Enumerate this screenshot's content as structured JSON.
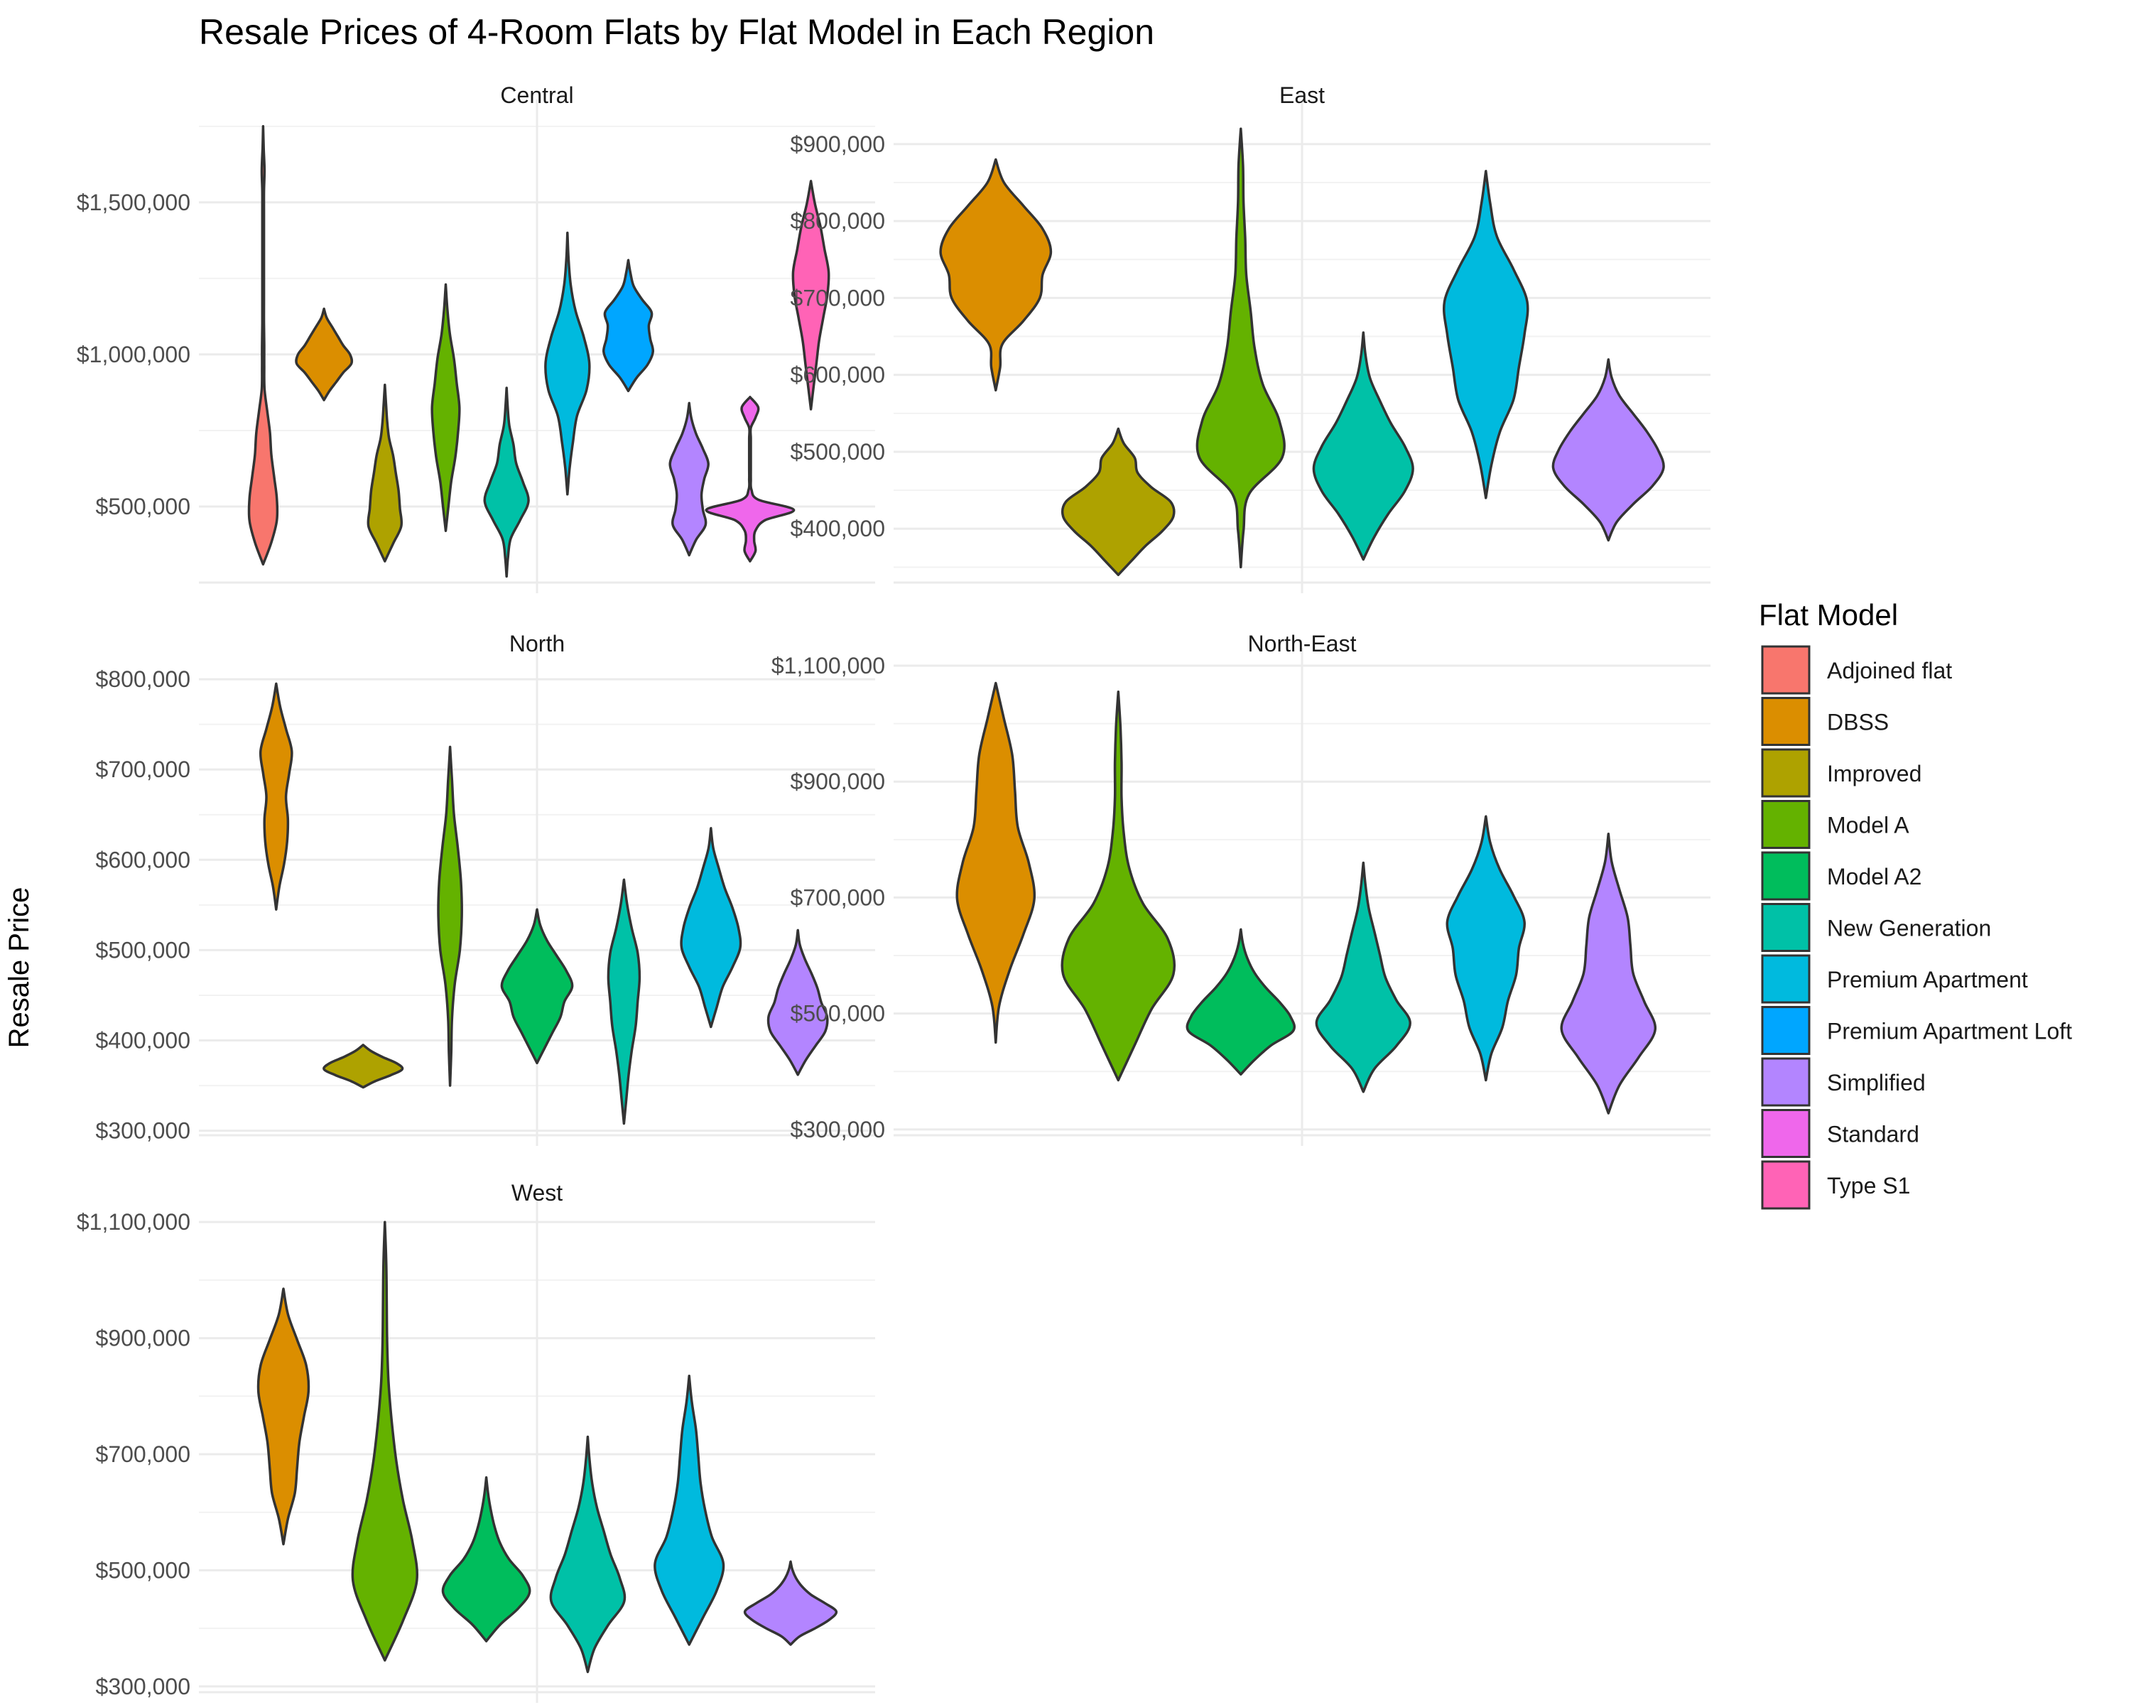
{
  "chart_data": {
    "type": "violin",
    "title": "Resale Prices of 4-Room Flats by Flat Model in Each Region",
    "ylabel": "Resale Price",
    "xlabel": "",
    "grid": true,
    "legend": {
      "title": "Flat Model",
      "placement": "right",
      "entries": [
        {
          "name": "Adjoined flat",
          "color": "#F8766D"
        },
        {
          "name": "DBSS",
          "color": "#DB8E00"
        },
        {
          "name": "Improved",
          "color": "#AEA200"
        },
        {
          "name": "Model A",
          "color": "#64B200"
        },
        {
          "name": "Model A2",
          "color": "#00BD5C"
        },
        {
          "name": "New Generation",
          "color": "#00C1A7"
        },
        {
          "name": "Premium Apartment",
          "color": "#00BADE"
        },
        {
          "name": "Premium Apartment Loft",
          "color": "#00A6FF"
        },
        {
          "name": "Simplified",
          "color": "#B385FF"
        },
        {
          "name": "Standard",
          "color": "#EF67EB"
        },
        {
          "name": "Type S1",
          "color": "#FF63B6"
        }
      ]
    },
    "panels": [
      {
        "region": "Central",
        "ylim": [
          250000,
          1780000
        ],
        "yticks": [
          500000,
          1000000,
          1500000
        ],
        "ytick_labels": [
          "$500,000",
          "$1,000,000",
          "$1,500,000"
        ],
        "violins": [
          {
            "model": "Adjoined flat",
            "min": 310000,
            "max": 1750000,
            "widths": [
              0,
              0.3,
              0.5,
              0.5,
              0.4,
              0.3,
              0.25,
              0.15,
              0.05,
              0.04,
              0.04,
              0.03,
              0.03,
              0.03,
              0.03,
              0.03,
              0.03,
              0.03,
              0.05,
              0.02,
              0
            ]
          },
          {
            "model": "DBSS",
            "min": 850000,
            "max": 1150000,
            "widths": [
              0,
              0.2,
              0.45,
              0.7,
              1.0,
              0.95,
              0.7,
              0.5,
              0.3,
              0.1,
              0
            ]
          },
          {
            "model": "Improved",
            "min": 320000,
            "max": 900000,
            "widths": [
              0,
              0.3,
              0.6,
              0.55,
              0.5,
              0.4,
              0.3,
              0.15,
              0.08,
              0.04,
              0
            ]
          },
          {
            "model": "Model A",
            "min": 420000,
            "max": 1230000,
            "widths": [
              0,
              0.1,
              0.2,
              0.35,
              0.45,
              0.5,
              0.4,
              0.3,
              0.15,
              0.06,
              0
            ]
          },
          {
            "model": "New Generation",
            "min": 270000,
            "max": 890000,
            "widths": [
              0,
              0.05,
              0.15,
              0.5,
              0.8,
              0.6,
              0.35,
              0.25,
              0.1,
              0.04,
              0
            ]
          },
          {
            "model": "Premium Apartment",
            "min": 540000,
            "max": 1400000,
            "widths": [
              0,
              0.08,
              0.2,
              0.35,
              0.7,
              0.8,
              0.6,
              0.3,
              0.12,
              0.04,
              0
            ]
          },
          {
            "model": "Premium Apartment Loft",
            "min": 880000,
            "max": 1310000,
            "widths": [
              0,
              0.3,
              0.7,
              0.9,
              0.8,
              0.75,
              0.85,
              0.5,
              0.2,
              0.08,
              0
            ]
          },
          {
            "model": "Simplified",
            "min": 340000,
            "max": 840000,
            "widths": [
              0,
              0.25,
              0.6,
              0.5,
              0.45,
              0.55,
              0.7,
              0.5,
              0.25,
              0.08,
              0
            ]
          },
          {
            "model": "Standard",
            "min": 320000,
            "max": 860000,
            "widths": [
              0,
              0.2,
              0.15,
              0.2,
              0.55,
              1.6,
              0.3,
              0.05,
              0.03,
              0.03,
              0.03,
              0.03,
              0.03,
              0.03,
              0.2,
              0.3,
              0
            ]
          },
          {
            "model": "Type S1",
            "min": 820000,
            "max": 1570000,
            "widths": [
              0,
              0.1,
              0.2,
              0.3,
              0.45,
              0.6,
              0.65,
              0.5,
              0.35,
              0.15,
              0
            ]
          }
        ]
      },
      {
        "region": "East",
        "ylim": [
          330000,
          935000
        ],
        "yticks": [
          400000,
          500000,
          600000,
          700000,
          800000,
          900000
        ],
        "ytick_labels": [
          "$400,000",
          "$500,000",
          "$600,000",
          "$700,000",
          "$800,000",
          "$900,000"
        ],
        "violins": [
          {
            "model": "DBSS",
            "min": 580000,
            "max": 880000,
            "widths": [
              0,
              0.08,
              0.12,
              0.5,
              0.8,
              0.85,
              1.0,
              0.85,
              0.5,
              0.15,
              0
            ]
          },
          {
            "model": "Improved",
            "min": 340000,
            "max": 530000,
            "widths": [
              0,
              0.25,
              0.5,
              0.8,
              1.0,
              0.95,
              0.6,
              0.35,
              0.3,
              0.1,
              0
            ]
          },
          {
            "model": "Model A",
            "min": 350000,
            "max": 920000,
            "widths": [
              0,
              0.05,
              0.15,
              0.75,
              0.7,
              0.4,
              0.25,
              0.18,
              0.1,
              0.08,
              0.05,
              0.04,
              0
            ]
          },
          {
            "model": "New Generation",
            "min": 360000,
            "max": 655000,
            "widths": [
              0,
              0.2,
              0.45,
              0.75,
              0.9,
              0.75,
              0.5,
              0.3,
              0.12,
              0.04,
              0
            ]
          },
          {
            "model": "Premium Apartment",
            "min": 440000,
            "max": 865000,
            "widths": [
              0,
              0.1,
              0.25,
              0.5,
              0.6,
              0.7,
              0.75,
              0.5,
              0.2,
              0.08,
              0
            ]
          },
          {
            "model": "Simplified",
            "min": 385000,
            "max": 620000,
            "widths": [
              0,
              0.15,
              0.45,
              0.8,
              1.0,
              0.9,
              0.7,
              0.45,
              0.2,
              0.06,
              0
            ]
          }
        ]
      },
      {
        "region": "North",
        "ylim": [
          295000,
          815000
        ],
        "yticks": [
          300000,
          400000,
          500000,
          600000,
          700000,
          800000
        ],
        "ytick_labels": [
          "$300,000",
          "$400,000",
          "$500,000",
          "$600,000",
          "$700,000",
          "$800,000"
        ],
        "violins": [
          {
            "model": "DBSS",
            "min": 545000,
            "max": 795000,
            "widths": [
              0,
              0.08,
              0.2,
              0.28,
              0.3,
              0.25,
              0.33,
              0.4,
              0.25,
              0.1,
              0
            ]
          },
          {
            "model": "Improved",
            "min": 348000,
            "max": 395000,
            "widths": [
              0,
              0.3,
              0.7,
              1.0,
              0.85,
              0.5,
              0.2,
              0
            ]
          },
          {
            "model": "Model A",
            "min": 350000,
            "max": 725000,
            "widths": [
              0,
              0.03,
              0.05,
              0.12,
              0.25,
              0.3,
              0.28,
              0.2,
              0.1,
              0.05,
              0
            ]
          },
          {
            "model": "Model A2",
            "min": 375000,
            "max": 545000,
            "widths": [
              0,
              0.2,
              0.4,
              0.6,
              0.7,
              0.9,
              0.75,
              0.5,
              0.25,
              0.08,
              0
            ]
          },
          {
            "model": "New Generation",
            "min": 308000,
            "max": 578000,
            "widths": [
              0,
              0.06,
              0.12,
              0.2,
              0.3,
              0.35,
              0.4,
              0.35,
              0.2,
              0.08,
              0
            ]
          },
          {
            "model": "Premium Apartment",
            "min": 415000,
            "max": 635000,
            "widths": [
              0,
              0.15,
              0.3,
              0.55,
              0.75,
              0.7,
              0.55,
              0.35,
              0.2,
              0.06,
              0
            ]
          },
          {
            "model": "Simplified",
            "min": 362000,
            "max": 522000,
            "widths": [
              0,
              0.2,
              0.45,
              0.7,
              0.75,
              0.6,
              0.5,
              0.35,
              0.18,
              0.05,
              0
            ]
          }
        ]
      },
      {
        "region": "North-East",
        "ylim": [
          290000,
          1100000
        ],
        "yticks": [
          300000,
          500000,
          700000,
          900000,
          1100000
        ],
        "ytick_labels": [
          "$300,000",
          "$500,000",
          "$700,000",
          "$900,000",
          "$1,100,000"
        ],
        "violins": [
          {
            "model": "DBSS",
            "min": 450000,
            "max": 1070000,
            "widths": [
              0,
              0.06,
              0.25,
              0.5,
              0.7,
              0.6,
              0.4,
              0.35,
              0.3,
              0.15,
              0
            ]
          },
          {
            "model": "Model A",
            "min": 385000,
            "max": 1055000,
            "widths": [
              0,
              0.3,
              0.6,
              1.0,
              0.9,
              0.45,
              0.2,
              0.1,
              0.06,
              0.06,
              0.04,
              0
            ]
          },
          {
            "model": "Model A2",
            "min": 395000,
            "max": 645000,
            "widths": [
              0,
              0.25,
              0.55,
              0.95,
              0.9,
              0.7,
              0.45,
              0.25,
              0.12,
              0.04,
              0
            ]
          },
          {
            "model": "New Generation",
            "min": 365000,
            "max": 760000,
            "widths": [
              0,
              0.2,
              0.6,
              0.85,
              0.6,
              0.4,
              0.3,
              0.2,
              0.1,
              0.04,
              0
            ]
          },
          {
            "model": "Premium Apartment",
            "min": 385000,
            "max": 840000,
            "widths": [
              0,
              0.1,
              0.3,
              0.4,
              0.55,
              0.6,
              0.7,
              0.5,
              0.25,
              0.08,
              0
            ]
          },
          {
            "model": "Simplified",
            "min": 328000,
            "max": 810000,
            "widths": [
              0,
              0.2,
              0.55,
              0.85,
              0.65,
              0.45,
              0.4,
              0.35,
              0.2,
              0.06,
              0
            ]
          }
        ]
      },
      {
        "region": "West",
        "ylim": [
          290000,
          1110000
        ],
        "yticks": [
          300000,
          500000,
          700000,
          900000,
          1100000
        ],
        "ytick_labels": [
          "$300,000",
          "$500,000",
          "$700,000",
          "$900,000",
          "$1,100,000"
        ],
        "violins": [
          {
            "model": "DBSS",
            "min": 545000,
            "max": 985000,
            "widths": [
              0,
              0.1,
              0.25,
              0.3,
              0.35,
              0.45,
              0.55,
              0.5,
              0.3,
              0.1,
              0
            ]
          },
          {
            "model": "Model A",
            "min": 345000,
            "max": 1100000,
            "widths": [
              0,
              0.4,
              0.7,
              0.6,
              0.4,
              0.25,
              0.15,
              0.08,
              0.05,
              0.04,
              0.03,
              0
            ]
          },
          {
            "model": "Model A2",
            "min": 378000,
            "max": 660000,
            "widths": [
              0,
              0.3,
              0.7,
              0.95,
              0.8,
              0.5,
              0.3,
              0.18,
              0.1,
              0.04,
              0
            ]
          },
          {
            "model": "New Generation",
            "min": 325000,
            "max": 730000,
            "widths": [
              0,
              0.15,
              0.45,
              0.8,
              0.7,
              0.5,
              0.35,
              0.2,
              0.1,
              0.04,
              0
            ]
          },
          {
            "model": "Premium Apartment",
            "min": 372000,
            "max": 835000,
            "widths": [
              0,
              0.3,
              0.6,
              0.75,
              0.5,
              0.35,
              0.25,
              0.2,
              0.15,
              0.06,
              0
            ]
          },
          {
            "model": "Simplified",
            "min": 372000,
            "max": 515000,
            "widths": [
              0,
              0.2,
              0.55,
              0.85,
              1.0,
              0.75,
              0.45,
              0.25,
              0.12,
              0.04,
              0
            ]
          }
        ]
      }
    ]
  }
}
